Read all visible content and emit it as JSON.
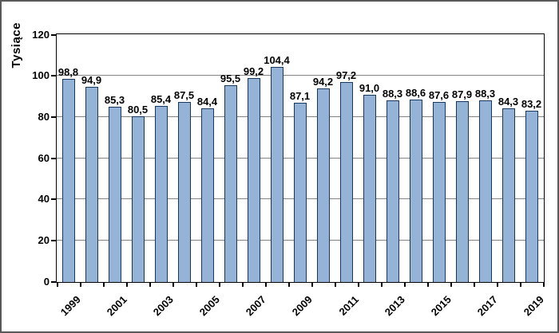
{
  "figure": {
    "background": "#ffffff",
    "border_color": "#595959"
  },
  "chart_data": {
    "type": "bar",
    "title": "",
    "ylabel": "Tysiące",
    "xlabel": "",
    "categories": [
      1999,
      2000,
      2001,
      2002,
      2003,
      2004,
      2005,
      2006,
      2007,
      2008,
      2009,
      2010,
      2011,
      2012,
      2013,
      2014,
      2015,
      2016,
      2017,
      2018,
      2019
    ],
    "values": [
      98.8,
      94.9,
      85.3,
      80.5,
      85.4,
      87.5,
      84.4,
      95.5,
      99.2,
      104.4,
      87.1,
      94.2,
      97.2,
      91.0,
      88.3,
      88.6,
      87.6,
      87.9,
      88.3,
      84.3,
      83.2
    ],
    "value_labels": [
      "98,8",
      "94,9",
      "85,3",
      "80,5",
      "85,4",
      "87,5",
      "84,4",
      "95,5",
      "99,2",
      "104,4",
      "87,1",
      "94,2",
      "97,2",
      "91,0",
      "88,3",
      "88,6",
      "87,6",
      "87,9",
      "88,3",
      "84,3",
      "83,2"
    ],
    "x_tick_labels": [
      "1999",
      "2001",
      "2003",
      "2005",
      "2007",
      "2009",
      "2011",
      "2013",
      "2015",
      "2017",
      "2019"
    ],
    "ylim": [
      0,
      120
    ],
    "yticks": [
      0,
      20,
      40,
      60,
      80,
      100,
      120
    ],
    "grid": "horizontal-major",
    "legend": "none",
    "decimal_separator": ",",
    "colors": {
      "bar_fill": "#95B3D7",
      "bar_border": "#17375E",
      "gridline": "#848484",
      "axis": "#000000",
      "text": "#000000"
    }
  }
}
